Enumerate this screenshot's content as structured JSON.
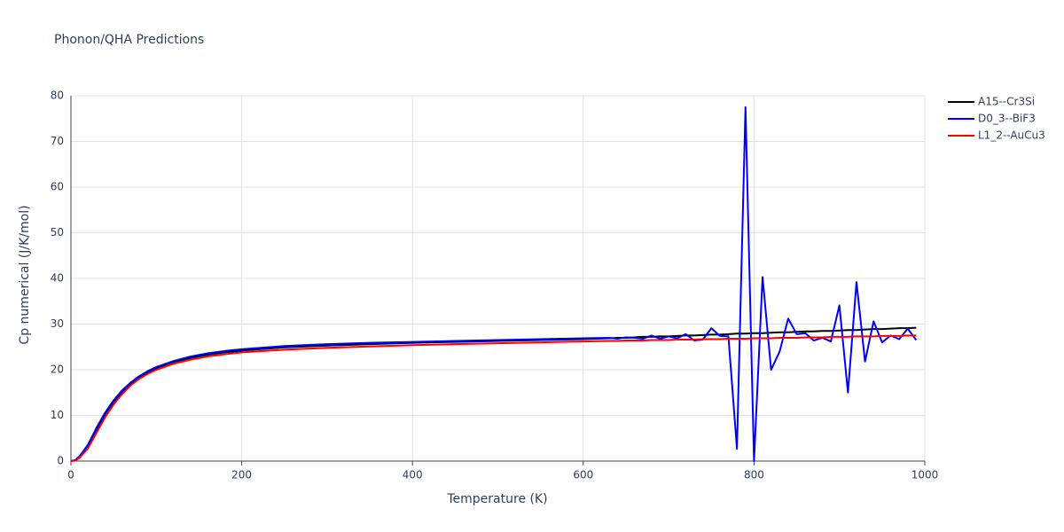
{
  "chart_data": {
    "type": "line",
    "title": "Phonon/QHA Predictions",
    "x_label": "Temperature (K)",
    "y_label": "Cp numerical (J/K/mol)",
    "x": [
      0,
      5,
      10,
      20,
      30,
      40,
      50,
      60,
      70,
      80,
      90,
      100,
      120,
      140,
      160,
      180,
      200,
      250,
      300,
      350,
      400,
      450,
      500,
      550,
      600,
      630,
      640,
      650,
      660,
      670,
      680,
      690,
      700,
      710,
      720,
      730,
      740,
      750,
      760,
      770,
      780,
      790,
      800,
      810,
      820,
      830,
      840,
      850,
      860,
      870,
      880,
      890,
      900,
      910,
      920,
      930,
      940,
      950,
      960,
      970,
      980,
      990
    ],
    "series": [
      {
        "name": "A15--Cr3Si",
        "color": "#000000",
        "values": [
          0,
          0.2,
          1,
          3.5,
          7,
          10.3,
          13,
          15.2,
          17,
          18.4,
          19.5,
          20.4,
          21.7,
          22.6,
          23.3,
          23.8,
          24.2,
          24.9,
          25.3,
          25.6,
          25.9,
          26.1,
          26.3,
          26.5,
          26.7,
          26.9,
          27.0,
          27.0,
          27.1,
          27.2,
          27.2,
          27.3,
          27.3,
          27.4,
          27.5,
          27.5,
          27.6,
          27.7,
          27.7,
          27.8,
          27.9,
          27.9,
          28.0,
          28.0,
          28.1,
          28.2,
          28.2,
          28.3,
          28.4,
          28.4,
          28.5,
          28.5,
          28.6,
          28.7,
          28.7,
          28.8,
          28.9,
          28.9,
          29.0,
          29.1,
          29.1,
          29.2
        ]
      },
      {
        "name": "D0_3--BiF3",
        "color": "#0000ff",
        "values": [
          0,
          0.2,
          1,
          3.6,
          7.3,
          10.6,
          13.3,
          15.5,
          17.2,
          18.6,
          19.7,
          20.6,
          21.9,
          22.9,
          23.6,
          24.1,
          24.5,
          25.2,
          25.6,
          25.9,
          26.1,
          26.3,
          26.5,
          26.7,
          26.9,
          27.0,
          26.8,
          27.1,
          27.0,
          26.8,
          27.5,
          26.8,
          27.3,
          26.9,
          27.8,
          26.4,
          26.6,
          29.1,
          27.4,
          27.3,
          2.7,
          77.5,
          0,
          40.3,
          20,
          24,
          31.2,
          27.8,
          28,
          26.4,
          27,
          26.2,
          34.1,
          15,
          39.2,
          21.8,
          30.6,
          26,
          27.5,
          26.7,
          29,
          26.5
        ]
      },
      {
        "name": "L1_2--AuCu3",
        "color": "#ff0000",
        "values": [
          0,
          0.1,
          0.7,
          2.8,
          6.2,
          9.6,
          12.4,
          14.7,
          16.6,
          18.0,
          19.1,
          20.0,
          21.3,
          22.2,
          22.9,
          23.4,
          23.8,
          24.4,
          24.8,
          25.1,
          25.4,
          25.6,
          25.8,
          26.0,
          26.2,
          26.3,
          26.3,
          26.4,
          26.4,
          26.4,
          26.5,
          26.5,
          26.5,
          26.6,
          26.6,
          26.6,
          26.7,
          26.7,
          26.7,
          26.8,
          26.8,
          26.8,
          26.9,
          26.9,
          26.9,
          27.0,
          27.0,
          27.0,
          27.1,
          27.1,
          27.1,
          27.2,
          27.2,
          27.2,
          27.3,
          27.3,
          27.3,
          27.4,
          27.4,
          27.4,
          27.5,
          27.5
        ]
      }
    ],
    "xlim": [
      0,
      1000
    ],
    "xticks": [
      0,
      200,
      400,
      600,
      800,
      1000
    ],
    "ylim": [
      0,
      80
    ],
    "yticks": [
      0,
      10,
      20,
      30,
      40,
      50,
      60,
      70,
      80
    ],
    "grid": true,
    "legend": "right"
  }
}
